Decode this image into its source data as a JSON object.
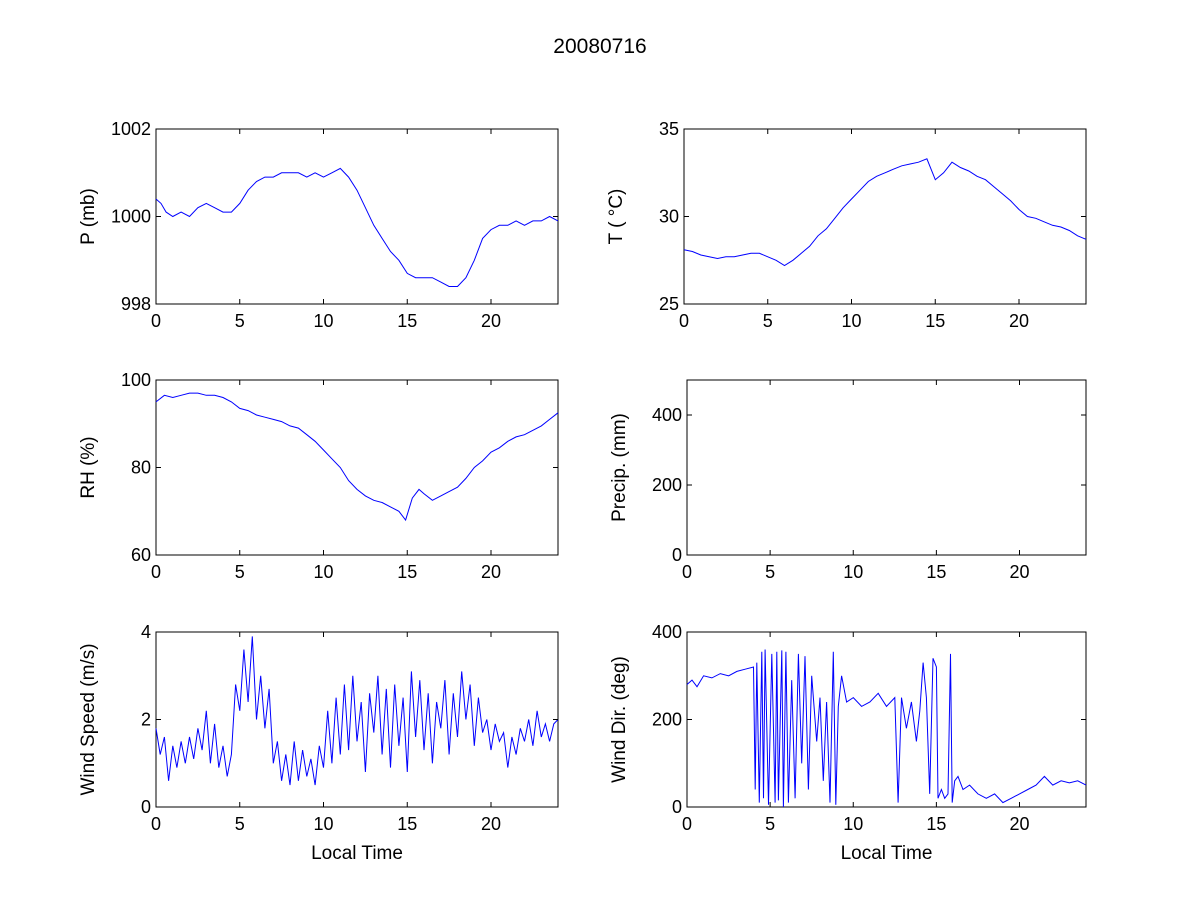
{
  "figure": {
    "title": "20080716",
    "colors": {
      "series": "#0000ff",
      "axes": "#000000",
      "background": "#ffffff"
    }
  },
  "chart_data": [
    {
      "id": "pressure",
      "type": "line",
      "title": "",
      "xlabel": "",
      "ylabel": "P (mb)",
      "xlim": [
        0,
        24
      ],
      "ylim": [
        998,
        1002
      ],
      "xticks": [
        0,
        5,
        10,
        15,
        20
      ],
      "yticks": [
        998,
        1000,
        1002
      ],
      "grid": false,
      "series": [
        {
          "color": "#0000ff",
          "x": [
            0,
            0.3,
            0.6,
            1.0,
            1.5,
            2.0,
            2.5,
            3.0,
            3.5,
            4.0,
            4.5,
            5.0,
            5.5,
            6.0,
            6.5,
            7.0,
            7.5,
            8.0,
            8.5,
            9.0,
            9.5,
            10.0,
            10.5,
            11.0,
            11.5,
            12.0,
            12.5,
            13.0,
            13.5,
            14.0,
            14.5,
            15.0,
            15.5,
            16.0,
            16.5,
            17.0,
            17.5,
            18.0,
            18.5,
            19.0,
            19.5,
            20.0,
            20.5,
            21.0,
            21.5,
            22.0,
            22.5,
            23.0,
            23.5,
            24.0
          ],
          "y": [
            1000.4,
            1000.3,
            1000.1,
            1000.0,
            1000.1,
            1000.0,
            1000.2,
            1000.3,
            1000.2,
            1000.1,
            1000.1,
            1000.3,
            1000.6,
            1000.8,
            1000.9,
            1000.9,
            1001.0,
            1001.0,
            1001.0,
            1000.9,
            1001.0,
            1000.9,
            1001.0,
            1001.1,
            1000.9,
            1000.6,
            1000.2,
            999.8,
            999.5,
            999.2,
            999.0,
            998.7,
            998.6,
            998.6,
            998.6,
            998.5,
            998.4,
            998.4,
            998.6,
            999.0,
            999.5,
            999.7,
            999.8,
            999.8,
            999.9,
            999.8,
            999.9,
            999.9,
            1000.0,
            999.9
          ]
        }
      ]
    },
    {
      "id": "temperature",
      "type": "line",
      "title": "",
      "xlabel": "",
      "ylabel": "T ( °C)",
      "xlim": [
        0,
        24
      ],
      "ylim": [
        25,
        35
      ],
      "xticks": [
        0,
        5,
        10,
        15,
        20
      ],
      "yticks": [
        25,
        30,
        35
      ],
      "grid": false,
      "series": [
        {
          "color": "#0000ff",
          "x": [
            0,
            0.5,
            1.0,
            1.5,
            2.0,
            2.5,
            3.0,
            3.5,
            4.0,
            4.5,
            5.0,
            5.5,
            6.0,
            6.5,
            7.0,
            7.5,
            8.0,
            8.5,
            9.0,
            9.5,
            10.0,
            10.5,
            11.0,
            11.5,
            12.0,
            12.5,
            13.0,
            13.5,
            14.0,
            14.5,
            15.0,
            15.5,
            16.0,
            16.5,
            17.0,
            17.5,
            18.0,
            18.5,
            19.0,
            19.5,
            20.0,
            20.5,
            21.0,
            21.5,
            22.0,
            22.5,
            23.0,
            23.5,
            24.0
          ],
          "y": [
            28.1,
            28.0,
            27.8,
            27.7,
            27.6,
            27.7,
            27.7,
            27.8,
            27.9,
            27.9,
            27.7,
            27.5,
            27.2,
            27.5,
            27.9,
            28.3,
            28.9,
            29.3,
            29.9,
            30.5,
            31.0,
            31.5,
            32.0,
            32.3,
            32.5,
            32.7,
            32.9,
            33.0,
            33.1,
            33.3,
            32.1,
            32.5,
            33.1,
            32.8,
            32.6,
            32.3,
            32.1,
            31.7,
            31.3,
            30.9,
            30.4,
            30.0,
            29.9,
            29.7,
            29.5,
            29.4,
            29.2,
            28.9,
            28.7
          ]
        }
      ]
    },
    {
      "id": "humidity",
      "type": "line",
      "title": "",
      "xlabel": "",
      "ylabel": "RH (%)",
      "xlim": [
        0,
        24
      ],
      "ylim": [
        60,
        100
      ],
      "xticks": [
        0,
        5,
        10,
        15,
        20
      ],
      "yticks": [
        60,
        80,
        100
      ],
      "grid": false,
      "series": [
        {
          "color": "#0000ff",
          "x": [
            0,
            0.5,
            1.0,
            1.5,
            2.0,
            2.5,
            3.0,
            3.5,
            4.0,
            4.5,
            5.0,
            5.5,
            6.0,
            6.5,
            7.0,
            7.5,
            8.0,
            8.5,
            9.0,
            9.5,
            10.0,
            10.5,
            11.0,
            11.5,
            12.0,
            12.5,
            13.0,
            13.5,
            14.0,
            14.5,
            14.9,
            15.3,
            15.7,
            16.0,
            16.5,
            17.0,
            17.5,
            18.0,
            18.5,
            19.0,
            19.5,
            20.0,
            20.5,
            21.0,
            21.5,
            22.0,
            22.5,
            23.0,
            23.5,
            24.0
          ],
          "y": [
            95,
            96.5,
            96,
            96.5,
            97,
            97,
            96.5,
            96.5,
            96,
            95,
            93.5,
            93,
            92,
            91.5,
            91,
            90.5,
            89.5,
            89,
            87.5,
            86,
            84,
            82,
            80,
            77,
            75,
            73.5,
            72.5,
            72,
            71,
            70,
            68,
            73,
            75,
            74,
            72.5,
            73.5,
            74.5,
            75.5,
            77.5,
            80,
            81.5,
            83.5,
            84.5,
            86,
            87,
            87.5,
            88.5,
            89.5,
            91,
            92.5
          ]
        }
      ]
    },
    {
      "id": "precipitation",
      "type": "line",
      "title": "",
      "xlabel": "",
      "ylabel": "Precip. (mm)",
      "xlim": [
        0,
        24
      ],
      "ylim": [
        0,
        500
      ],
      "xticks": [
        0,
        5,
        10,
        15,
        20
      ],
      "yticks": [
        0,
        200,
        400
      ],
      "grid": false,
      "series": []
    },
    {
      "id": "wind-speed",
      "type": "line",
      "title": "",
      "xlabel": "Local Time",
      "ylabel": "Wind Speed (m/s)",
      "xlim": [
        0,
        24
      ],
      "ylim": [
        0,
        4
      ],
      "xticks": [
        0,
        5,
        10,
        15,
        20
      ],
      "yticks": [
        0,
        2,
        4
      ],
      "grid": false,
      "series": [
        {
          "color": "#0000ff",
          "x": [
            0,
            0.25,
            0.5,
            0.75,
            1.0,
            1.25,
            1.5,
            1.75,
            2.0,
            2.25,
            2.5,
            2.75,
            3.0,
            3.25,
            3.5,
            3.75,
            4.0,
            4.25,
            4.5,
            4.75,
            5.0,
            5.25,
            5.5,
            5.75,
            6.0,
            6.25,
            6.5,
            6.75,
            7.0,
            7.25,
            7.5,
            7.75,
            8.0,
            8.25,
            8.5,
            8.75,
            9.0,
            9.25,
            9.5,
            9.75,
            10.0,
            10.25,
            10.5,
            10.75,
            11.0,
            11.25,
            11.5,
            11.75,
            12.0,
            12.25,
            12.5,
            12.75,
            13.0,
            13.25,
            13.5,
            13.75,
            14.0,
            14.25,
            14.5,
            14.75,
            15.0,
            15.25,
            15.5,
            15.75,
            16.0,
            16.25,
            16.5,
            16.75,
            17.0,
            17.25,
            17.5,
            17.75,
            18.0,
            18.25,
            18.5,
            18.75,
            19.0,
            19.25,
            19.5,
            19.75,
            20.0,
            20.25,
            20.5,
            20.75,
            21.0,
            21.25,
            21.5,
            21.75,
            22.0,
            22.25,
            22.5,
            22.75,
            23.0,
            23.25,
            23.5,
            23.75,
            24.0
          ],
          "y": [
            1.8,
            1.2,
            1.6,
            0.6,
            1.4,
            0.9,
            1.5,
            1.0,
            1.6,
            1.1,
            1.8,
            1.3,
            2.2,
            1.0,
            1.9,
            0.9,
            1.4,
            0.7,
            1.2,
            2.8,
            2.2,
            3.6,
            2.4,
            3.9,
            2.0,
            3.0,
            1.8,
            2.7,
            1.0,
            1.5,
            0.6,
            1.2,
            0.5,
            1.5,
            0.6,
            1.3,
            0.7,
            1.1,
            0.5,
            1.4,
            0.9,
            2.2,
            1.0,
            2.5,
            1.2,
            2.8,
            1.3,
            3.0,
            1.5,
            2.4,
            0.8,
            2.6,
            1.7,
            3.0,
            1.2,
            2.7,
            0.9,
            2.8,
            1.4,
            2.5,
            0.8,
            3.1,
            1.6,
            2.9,
            1.3,
            2.6,
            1.0,
            2.4,
            1.8,
            2.9,
            1.2,
            2.6,
            1.6,
            3.1,
            2.0,
            2.8,
            1.4,
            2.5,
            1.7,
            2.0,
            1.3,
            1.9,
            1.5,
            1.7,
            0.9,
            1.6,
            1.2,
            1.8,
            1.5,
            2.0,
            1.4,
            2.2,
            1.6,
            1.9,
            1.5,
            1.9,
            2.0
          ]
        }
      ]
    },
    {
      "id": "wind-direction",
      "type": "line",
      "title": "",
      "xlabel": "Local Time",
      "ylabel": "Wind Dir. (deg)",
      "xlim": [
        0,
        24
      ],
      "ylim": [
        0,
        400
      ],
      "xticks": [
        0,
        5,
        10,
        15,
        20
      ],
      "yticks": [
        0,
        200,
        400
      ],
      "grid": false,
      "series": [
        {
          "color": "#0000ff",
          "x": [
            0,
            0.3,
            0.6,
            1.0,
            1.5,
            2.0,
            2.5,
            3.0,
            3.5,
            4.0,
            4.1,
            4.2,
            4.35,
            4.5,
            4.6,
            4.7,
            4.9,
            5.1,
            5.3,
            5.4,
            5.5,
            5.7,
            5.8,
            5.95,
            6.1,
            6.3,
            6.5,
            6.7,
            6.9,
            7.1,
            7.3,
            7.5,
            7.8,
            8.0,
            8.2,
            8.4,
            8.6,
            8.8,
            8.95,
            9.1,
            9.3,
            9.6,
            10.0,
            10.5,
            11.0,
            11.5,
            12.0,
            12.5,
            12.7,
            12.9,
            13.2,
            13.5,
            13.8,
            14.0,
            14.2,
            14.4,
            14.6,
            14.8,
            15.0,
            15.1,
            15.3,
            15.5,
            15.7,
            15.85,
            15.95,
            16.1,
            16.3,
            16.6,
            17.0,
            17.5,
            18.0,
            18.5,
            19.0,
            19.5,
            20.0,
            20.5,
            21.0,
            21.5,
            22.0,
            22.5,
            23.0,
            23.5,
            24.0
          ],
          "y": [
            280,
            290,
            275,
            300,
            295,
            305,
            300,
            310,
            315,
            320,
            40,
            330,
            10,
            355,
            20,
            360,
            5,
            350,
            10,
            355,
            15,
            358,
            0,
            355,
            10,
            290,
            20,
            350,
            100,
            345,
            40,
            300,
            150,
            250,
            60,
            240,
            10,
            355,
            5,
            230,
            300,
            240,
            250,
            230,
            240,
            260,
            230,
            250,
            10,
            250,
            180,
            240,
            150,
            220,
            330,
            250,
            30,
            340,
            320,
            20,
            40,
            20,
            30,
            350,
            10,
            60,
            70,
            40,
            50,
            30,
            20,
            30,
            10,
            20,
            30,
            40,
            50,
            70,
            50,
            60,
            55,
            60,
            50
          ]
        }
      ]
    }
  ]
}
